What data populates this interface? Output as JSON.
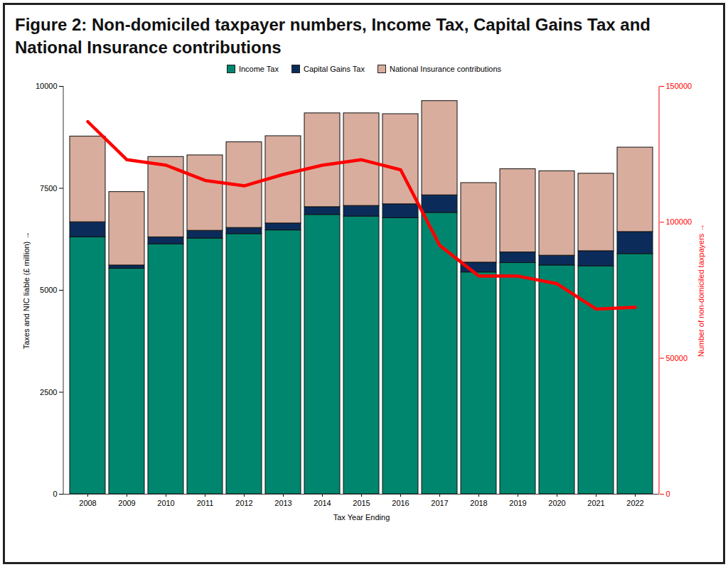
{
  "chart_data": {
    "type": "bar",
    "title": "Figure 2: Non-domiciled taxpayer numbers, Income Tax, Capital Gains Tax and National Insurance contributions",
    "x_label": "Tax Year Ending",
    "y_label": "Taxes and NIC liable (£ million)",
    "categories": [
      "2008",
      "2009",
      "2010",
      "2011",
      "2012",
      "2013",
      "2014",
      "2015",
      "2016",
      "2017",
      "2018",
      "2019",
      "2020",
      "2021",
      "2022"
    ],
    "stacked": true,
    "legend": "top",
    "ylim": [
      0,
      10000
    ],
    "yticks": [
      0,
      2500,
      5000,
      7500,
      10000
    ],
    "y2lim": [
      0,
      150000
    ],
    "y2ticks": [
      0,
      50000,
      100000,
      150000
    ],
    "series": [
      {
        "name": "Income Tax",
        "color": "#00866e",
        "values": [
          6300,
          5530,
          6130,
          6270,
          6380,
          6470,
          6850,
          6810,
          6770,
          6900,
          5440,
          5670,
          5610,
          5590,
          5890
        ]
      },
      {
        "name": "Capital Gains Tax",
        "color": "#0b2c5a",
        "values": [
          370,
          80,
          170,
          190,
          150,
          170,
          190,
          260,
          340,
          430,
          240,
          260,
          240,
          370,
          540
        ]
      },
      {
        "name": "National Insurance contributions",
        "color": "#d8ad9d",
        "values": [
          2100,
          1800,
          1970,
          1850,
          2100,
          2140,
          2300,
          2270,
          2210,
          2310,
          1950,
          2040,
          2070,
          1900,
          2070
        ]
      },
      {
        "name": "Number of non-domiciled taxpayers",
        "type": "line",
        "axis": "y2",
        "color": "#ff0000",
        "values": [
          137000,
          123000,
          121000,
          115400,
          113400,
          117600,
          121000,
          123000,
          119300,
          91500,
          80200,
          80200,
          77400,
          68100,
          68700
        ]
      }
    ]
  }
}
